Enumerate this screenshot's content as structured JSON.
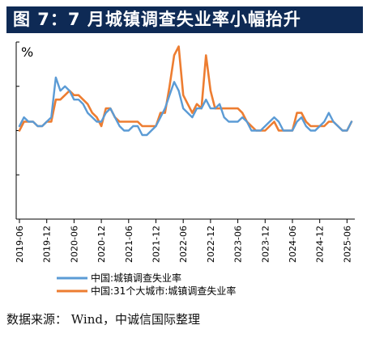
{
  "header": {
    "title": "图 7：7 月城镇调查失业率小幅抬升"
  },
  "footer": {
    "source": "数据来源：  Wind，中诚信国际整理"
  },
  "colors": {
    "title_bg": "#0e2a55",
    "series_national": "#5b9bd5",
    "series_31": "#ed7d31",
    "axis": "#000000"
  },
  "chart_data": {
    "type": "line",
    "ylabel": "%",
    "ylim": [
      3,
      7
    ],
    "y_ticks": [
      3,
      4,
      5,
      6,
      7
    ],
    "show_y_tick_labels": false,
    "grid": false,
    "legend_position": "bottom-center",
    "x_tick_labels": [
      "2019-06",
      "2019-12",
      "2020-06",
      "2020-12",
      "2021-06",
      "2021-12",
      "2022-06",
      "2022-12",
      "2023-06",
      "2023-12",
      "2024-06",
      "2024-12",
      "2025-06"
    ],
    "x_start": "2019-06",
    "x_end": "2025-07",
    "series": [
      {
        "name": "中国:城镇调查失业率",
        "color": "#5b9bd5",
        "values": [
          [
            "2019-06",
            5.1
          ],
          [
            "2019-07",
            5.3
          ],
          [
            "2019-08",
            5.2
          ],
          [
            "2019-09",
            5.2
          ],
          [
            "2019-10",
            5.1
          ],
          [
            "2019-11",
            5.1
          ],
          [
            "2019-12",
            5.2
          ],
          [
            "2020-01",
            5.3
          ],
          [
            "2020-02",
            6.2
          ],
          [
            "2020-03",
            5.9
          ],
          [
            "2020-04",
            6.0
          ],
          [
            "2020-05",
            5.9
          ],
          [
            "2020-06",
            5.7
          ],
          [
            "2020-07",
            5.7
          ],
          [
            "2020-08",
            5.6
          ],
          [
            "2020-09",
            5.4
          ],
          [
            "2020-10",
            5.3
          ],
          [
            "2020-11",
            5.2
          ],
          [
            "2020-12",
            5.2
          ],
          [
            "2021-01",
            5.4
          ],
          [
            "2021-02",
            5.5
          ],
          [
            "2021-03",
            5.3
          ],
          [
            "2021-04",
            5.1
          ],
          [
            "2021-05",
            5.0
          ],
          [
            "2021-06",
            5.0
          ],
          [
            "2021-07",
            5.1
          ],
          [
            "2021-08",
            5.1
          ],
          [
            "2021-09",
            4.9
          ],
          [
            "2021-10",
            4.9
          ],
          [
            "2021-11",
            5.0
          ],
          [
            "2021-12",
            5.1
          ],
          [
            "2022-01",
            5.3
          ],
          [
            "2022-02",
            5.5
          ],
          [
            "2022-03",
            5.8
          ],
          [
            "2022-04",
            6.1
          ],
          [
            "2022-05",
            5.9
          ],
          [
            "2022-06",
            5.5
          ],
          [
            "2022-07",
            5.4
          ],
          [
            "2022-08",
            5.3
          ],
          [
            "2022-09",
            5.5
          ],
          [
            "2022-10",
            5.5
          ],
          [
            "2022-11",
            5.7
          ],
          [
            "2022-12",
            5.5
          ],
          [
            "2023-01",
            5.5
          ],
          [
            "2023-02",
            5.6
          ],
          [
            "2023-03",
            5.3
          ],
          [
            "2023-04",
            5.2
          ],
          [
            "2023-05",
            5.2
          ],
          [
            "2023-06",
            5.2
          ],
          [
            "2023-07",
            5.3
          ],
          [
            "2023-08",
            5.2
          ],
          [
            "2023-09",
            5.0
          ],
          [
            "2023-10",
            5.0
          ],
          [
            "2023-11",
            5.0
          ],
          [
            "2023-12",
            5.1
          ],
          [
            "2024-01",
            5.2
          ],
          [
            "2024-02",
            5.3
          ],
          [
            "2024-03",
            5.2
          ],
          [
            "2024-04",
            5.0
          ],
          [
            "2024-05",
            5.0
          ],
          [
            "2024-06",
            5.0
          ],
          [
            "2024-07",
            5.2
          ],
          [
            "2024-08",
            5.3
          ],
          [
            "2024-09",
            5.1
          ],
          [
            "2024-10",
            5.0
          ],
          [
            "2024-11",
            5.0
          ],
          [
            "2024-12",
            5.1
          ],
          [
            "2025-01",
            5.2
          ],
          [
            "2025-02",
            5.4
          ],
          [
            "2025-03",
            5.2
          ],
          [
            "2025-04",
            5.1
          ],
          [
            "2025-05",
            5.0
          ],
          [
            "2025-06",
            5.0
          ],
          [
            "2025-07",
            5.2
          ]
        ]
      },
      {
        "name": "中国:31个大城市:城镇调查失业率",
        "color": "#ed7d31",
        "values": [
          [
            "2019-06",
            5.0
          ],
          [
            "2019-07",
            5.2
          ],
          [
            "2019-08",
            5.2
          ],
          [
            "2019-09",
            5.2
          ],
          [
            "2019-10",
            5.1
          ],
          [
            "2019-11",
            5.1
          ],
          [
            "2019-12",
            5.2
          ],
          [
            "2020-01",
            5.2
          ],
          [
            "2020-02",
            5.7
          ],
          [
            "2020-03",
            5.7
          ],
          [
            "2020-04",
            5.8
          ],
          [
            "2020-05",
            5.9
          ],
          [
            "2020-06",
            5.8
          ],
          [
            "2020-07",
            5.8
          ],
          [
            "2020-08",
            5.7
          ],
          [
            "2020-09",
            5.6
          ],
          [
            "2020-10",
            5.4
          ],
          [
            "2020-11",
            5.3
          ],
          [
            "2020-12",
            5.1
          ],
          [
            "2021-01",
            5.5
          ],
          [
            "2021-02",
            5.5
          ],
          [
            "2021-03",
            5.3
          ],
          [
            "2021-04",
            5.2
          ],
          [
            "2021-05",
            5.2
          ],
          [
            "2021-06",
            5.2
          ],
          [
            "2021-07",
            5.2
          ],
          [
            "2021-08",
            5.2
          ],
          [
            "2021-09",
            5.1
          ],
          [
            "2021-10",
            5.1
          ],
          [
            "2021-11",
            5.1
          ],
          [
            "2021-12",
            5.1
          ],
          [
            "2022-01",
            5.4
          ],
          [
            "2022-02",
            5.4
          ],
          [
            "2022-03",
            6.0
          ],
          [
            "2022-04",
            6.7
          ],
          [
            "2022-05",
            6.9
          ],
          [
            "2022-06",
            5.8
          ],
          [
            "2022-07",
            5.6
          ],
          [
            "2022-08",
            5.4
          ],
          [
            "2022-09",
            5.6
          ],
          [
            "2022-10",
            5.5
          ],
          [
            "2022-11",
            6.7
          ],
          [
            "2022-12",
            5.9
          ],
          [
            "2023-01",
            5.5
          ],
          [
            "2023-02",
            5.5
          ],
          [
            "2023-03",
            5.5
          ],
          [
            "2023-04",
            5.5
          ],
          [
            "2023-05",
            5.5
          ],
          [
            "2023-06",
            5.5
          ],
          [
            "2023-07",
            5.4
          ],
          [
            "2023-08",
            5.2
          ],
          [
            "2023-09",
            5.1
          ],
          [
            "2023-10",
            5.0
          ],
          [
            "2023-11",
            5.0
          ],
          [
            "2023-12",
            5.0
          ],
          [
            "2024-01",
            5.1
          ],
          [
            "2024-02",
            5.2
          ],
          [
            "2024-03",
            5.0
          ],
          [
            "2024-04",
            5.0
          ],
          [
            "2024-05",
            5.0
          ],
          [
            "2024-06",
            5.0
          ],
          [
            "2024-07",
            5.4
          ],
          [
            "2024-08",
            5.4
          ],
          [
            "2024-09",
            5.2
          ],
          [
            "2024-10",
            5.1
          ],
          [
            "2024-11",
            5.1
          ],
          [
            "2024-12",
            5.1
          ],
          [
            "2025-01",
            5.1
          ],
          [
            "2025-02",
            5.2
          ],
          [
            "2025-03",
            5.2
          ],
          [
            "2025-04",
            5.1
          ],
          [
            "2025-05",
            5.0
          ],
          [
            "2025-06",
            5.0
          ],
          [
            "2025-07",
            5.2
          ]
        ]
      }
    ]
  }
}
